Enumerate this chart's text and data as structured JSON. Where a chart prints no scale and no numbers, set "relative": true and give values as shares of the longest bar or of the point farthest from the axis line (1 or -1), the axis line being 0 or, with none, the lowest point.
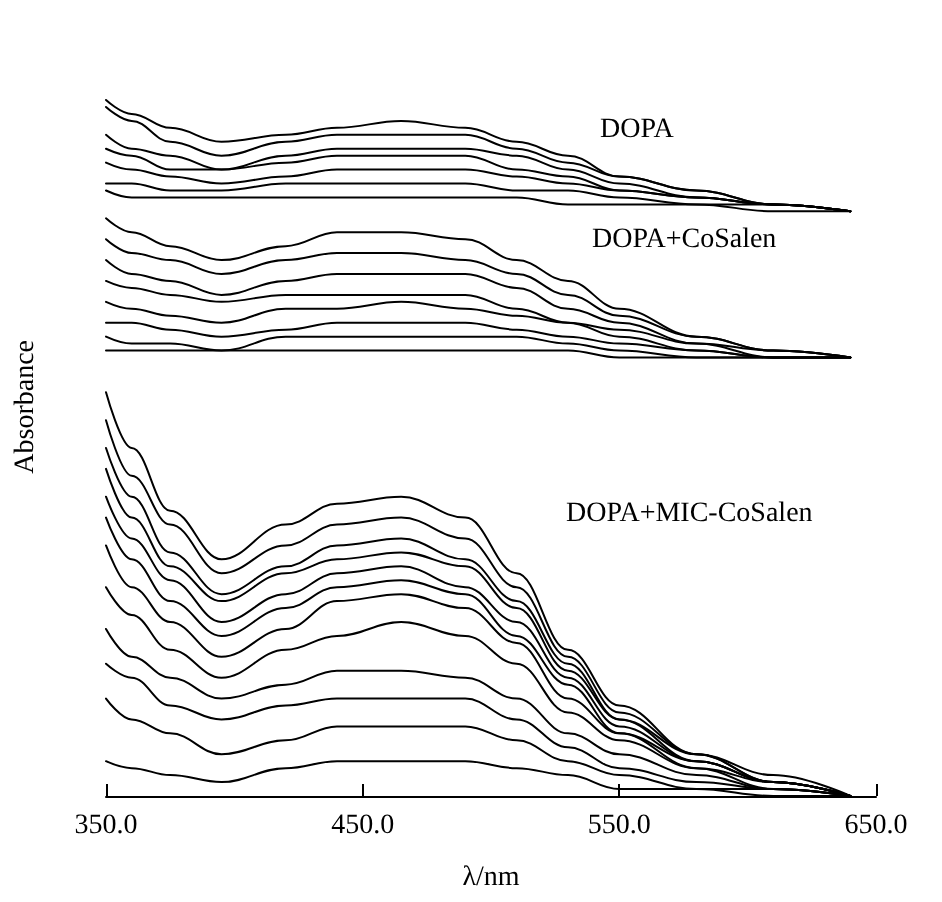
{
  "chart_data": {
    "type": "line",
    "relative": true,
    "xlabel": "λ/nm",
    "ylabel": "Absorbance",
    "xlim": [
      350,
      650
    ],
    "xticks": [
      {
        "value": 350,
        "label": "350.0"
      },
      {
        "value": 450,
        "label": "450.0"
      },
      {
        "value": 550,
        "label": "550.0"
      },
      {
        "value": 650,
        "label": "650.0"
      }
    ],
    "grid": false,
    "marker": "none",
    "line_style": "solid",
    "annotations": [
      "DOPA",
      "DOPA+CoSalen",
      "DOPA+MIC-CoSalen"
    ],
    "x": [
      350,
      360,
      375,
      395,
      420,
      440,
      465,
      490,
      510,
      530,
      550,
      580,
      610,
      640
    ],
    "series": [
      {
        "color": "#000000",
        "values": [
          1.0,
          0.98,
          0.96,
          0.94,
          0.95,
          0.96,
          0.97,
          0.96,
          0.94,
          0.92,
          0.89,
          0.87,
          0.85,
          0.84
        ]
      },
      {
        "color": "#000000",
        "values": [
          0.99,
          0.97,
          0.94,
          0.92,
          0.94,
          0.95,
          0.95,
          0.95,
          0.93,
          0.91,
          0.89,
          0.87,
          0.85,
          0.84
        ]
      },
      {
        "color": "#000000",
        "values": [
          0.95,
          0.93,
          0.92,
          0.9,
          0.92,
          0.93,
          0.93,
          0.93,
          0.92,
          0.9,
          0.88,
          0.86,
          0.85,
          0.84
        ]
      },
      {
        "color": "#000000",
        "values": [
          0.93,
          0.92,
          0.9,
          0.9,
          0.91,
          0.92,
          0.92,
          0.92,
          0.9,
          0.89,
          0.87,
          0.86,
          0.85,
          0.84
        ]
      },
      {
        "color": "#000000",
        "values": [
          0.91,
          0.9,
          0.89,
          0.88,
          0.89,
          0.9,
          0.9,
          0.9,
          0.89,
          0.88,
          0.87,
          0.86,
          0.85,
          0.84
        ]
      },
      {
        "color": "#000000",
        "values": [
          0.88,
          0.88,
          0.87,
          0.87,
          0.88,
          0.88,
          0.88,
          0.88,
          0.87,
          0.87,
          0.86,
          0.85,
          0.85,
          0.84
        ]
      },
      {
        "color": "#000000",
        "values": [
          0.87,
          0.86,
          0.86,
          0.86,
          0.86,
          0.86,
          0.86,
          0.86,
          0.86,
          0.85,
          0.85,
          0.85,
          0.84,
          0.84
        ]
      },
      {
        "color": "#000000",
        "values": [
          0.83,
          0.81,
          0.79,
          0.77,
          0.79,
          0.81,
          0.81,
          0.8,
          0.77,
          0.74,
          0.7,
          0.66,
          0.64,
          0.63
        ]
      },
      {
        "color": "#000000",
        "values": [
          0.8,
          0.78,
          0.77,
          0.75,
          0.77,
          0.78,
          0.78,
          0.77,
          0.75,
          0.72,
          0.69,
          0.66,
          0.64,
          0.63
        ]
      },
      {
        "color": "#000000",
        "values": [
          0.77,
          0.75,
          0.74,
          0.72,
          0.74,
          0.75,
          0.75,
          0.75,
          0.73,
          0.7,
          0.68,
          0.65,
          0.64,
          0.63
        ]
      },
      {
        "color": "#000000",
        "values": [
          0.74,
          0.73,
          0.72,
          0.71,
          0.72,
          0.72,
          0.72,
          0.72,
          0.7,
          0.68,
          0.67,
          0.65,
          0.63,
          0.63
        ]
      },
      {
        "color": "#000000",
        "values": [
          0.71,
          0.7,
          0.69,
          0.68,
          0.7,
          0.7,
          0.71,
          0.7,
          0.69,
          0.68,
          0.66,
          0.64,
          0.63,
          0.63
        ]
      },
      {
        "color": "#000000",
        "values": [
          0.68,
          0.68,
          0.67,
          0.66,
          0.67,
          0.68,
          0.68,
          0.68,
          0.67,
          0.66,
          0.65,
          0.64,
          0.63,
          0.63
        ]
      },
      {
        "color": "#000000",
        "values": [
          0.66,
          0.65,
          0.65,
          0.64,
          0.66,
          0.66,
          0.66,
          0.66,
          0.66,
          0.65,
          0.64,
          0.63,
          0.63,
          0.63
        ]
      },
      {
        "color": "#000000",
        "values": [
          0.64,
          0.64,
          0.64,
          0.64,
          0.64,
          0.64,
          0.64,
          0.64,
          0.64,
          0.64,
          0.63,
          0.63,
          0.63,
          0.63
        ]
      },
      {
        "color": "#000000",
        "values": [
          0.58,
          0.5,
          0.41,
          0.34,
          0.39,
          0.42,
          0.43,
          0.4,
          0.32,
          0.21,
          0.13,
          0.06,
          0.03,
          0
        ]
      },
      {
        "color": "#000000",
        "values": [
          0.54,
          0.46,
          0.39,
          0.32,
          0.36,
          0.39,
          0.4,
          0.37,
          0.3,
          0.2,
          0.12,
          0.06,
          0.02,
          0
        ]
      },
      {
        "color": "#000000",
        "values": [
          0.5,
          0.43,
          0.35,
          0.29,
          0.33,
          0.36,
          0.37,
          0.34,
          0.28,
          0.19,
          0.11,
          0.06,
          0.02,
          0
        ]
      },
      {
        "color": "#000000",
        "values": [
          0.47,
          0.4,
          0.33,
          0.28,
          0.32,
          0.34,
          0.35,
          0.33,
          0.27,
          0.18,
          0.11,
          0.05,
          0.02,
          0
        ]
      },
      {
        "color": "#000000",
        "values": [
          0.43,
          0.37,
          0.31,
          0.25,
          0.29,
          0.32,
          0.33,
          0.3,
          0.25,
          0.17,
          0.1,
          0.05,
          0.02,
          0
        ]
      },
      {
        "color": "#000000",
        "values": [
          0.4,
          0.34,
          0.28,
          0.23,
          0.27,
          0.3,
          0.31,
          0.29,
          0.23,
          0.16,
          0.09,
          0.05,
          0.02,
          0
        ]
      },
      {
        "color": "#000000",
        "values": [
          0.36,
          0.3,
          0.25,
          0.2,
          0.24,
          0.28,
          0.29,
          0.27,
          0.22,
          0.14,
          0.09,
          0.04,
          0.02,
          0
        ]
      },
      {
        "color": "#000000",
        "values": [
          0.3,
          0.26,
          0.21,
          0.17,
          0.21,
          0.23,
          0.25,
          0.23,
          0.19,
          0.12,
          0.08,
          0.04,
          0.01,
          0
        ]
      },
      {
        "color": "#000000",
        "values": [
          0.24,
          0.2,
          0.17,
          0.14,
          0.16,
          0.18,
          0.18,
          0.17,
          0.14,
          0.09,
          0.06,
          0.03,
          0.01,
          0
        ]
      },
      {
        "color": "#000000",
        "values": [
          0.19,
          0.17,
          0.13,
          0.11,
          0.13,
          0.14,
          0.14,
          0.14,
          0.11,
          0.07,
          0.04,
          0.02,
          0.01,
          0
        ]
      },
      {
        "color": "#000000",
        "values": [
          0.14,
          0.11,
          0.09,
          0.06,
          0.08,
          0.1,
          0.1,
          0.1,
          0.08,
          0.05,
          0.03,
          0.01,
          0.01,
          0
        ]
      },
      {
        "color": "#000000",
        "values": [
          0.05,
          0.04,
          0.03,
          0.02,
          0.04,
          0.05,
          0.05,
          0.05,
          0.04,
          0.03,
          0.01,
          0.01,
          0,
          0
        ]
      }
    ]
  }
}
